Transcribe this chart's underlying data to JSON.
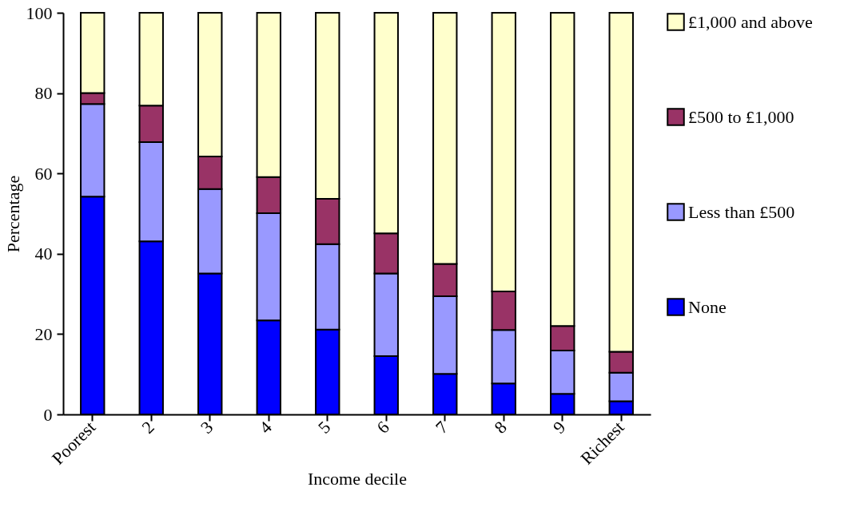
{
  "chart_data": {
    "type": "bar",
    "stacked": true,
    "xlabel": "Income decile",
    "ylabel": "Percentage",
    "categories": [
      "Poorest",
      "2",
      "3",
      "4",
      "5",
      "6",
      "7",
      "8",
      "9",
      "Richest"
    ],
    "series": [
      {
        "name": "None",
        "color": "#0000ff",
        "values": [
          54.2,
          43.1,
          35.1,
          23.4,
          21.1,
          14.5,
          10.1,
          7.7,
          5.1,
          3.3
        ]
      },
      {
        "name": "Less than £500",
        "color": "#9999ff",
        "values": [
          23.1,
          24.7,
          21.0,
          26.7,
          21.3,
          20.6,
          19.3,
          13.3,
          10.8,
          7.1
        ]
      },
      {
        "name": "£500 to £1,000",
        "color": "#993366",
        "values": [
          2.7,
          9.1,
          8.1,
          9.0,
          11.3,
          10.0,
          8.1,
          9.6,
          6.1,
          5.2
        ]
      },
      {
        "name": "£1,000 and above",
        "color": "#ffffcc",
        "values": [
          20.0,
          23.1,
          35.8,
          40.9,
          46.3,
          54.9,
          62.5,
          69.4,
          78.0,
          84.4
        ]
      }
    ],
    "ylim": [
      0,
      100
    ],
    "yticks": [
      0,
      20,
      40,
      60,
      80,
      100
    ],
    "grid": false,
    "legend": "right"
  }
}
